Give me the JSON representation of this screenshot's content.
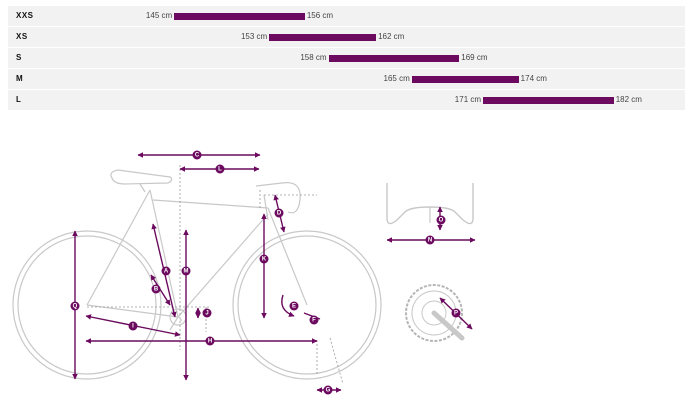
{
  "colors": {
    "accent": "#6b0a5e",
    "outline": "#c8c8c8",
    "dotted": "#9a9a9a",
    "row_bg": "#f2f2f2"
  },
  "size_scale": {
    "min_cm": 138,
    "max_cm": 188
  },
  "sizes": [
    {
      "label": "XXS",
      "min": "145 cm",
      "max": "156 cm",
      "min_cm": 145,
      "max_cm": 156
    },
    {
      "label": "XS",
      "min": "153 cm",
      "max": "162 cm",
      "min_cm": 153,
      "max_cm": 162
    },
    {
      "label": "S",
      "min": "158 cm",
      "max": "169 cm",
      "min_cm": 158,
      "max_cm": 169
    },
    {
      "label": "M",
      "min": "165 cm",
      "max": "174 cm",
      "min_cm": 165,
      "max_cm": 174
    },
    {
      "label": "L",
      "min": "171 cm",
      "max": "182 cm",
      "min_cm": 171,
      "max_cm": 182
    }
  ],
  "markers": {
    "A": "A",
    "B": "B",
    "C": "C",
    "D": "D",
    "E": "E",
    "F": "F",
    "G": "G",
    "H": "H",
    "I": "I",
    "J": "J",
    "K": "K",
    "L": "L",
    "M": "M",
    "N": "N",
    "O": "O",
    "P": "P",
    "Q": "Q"
  }
}
